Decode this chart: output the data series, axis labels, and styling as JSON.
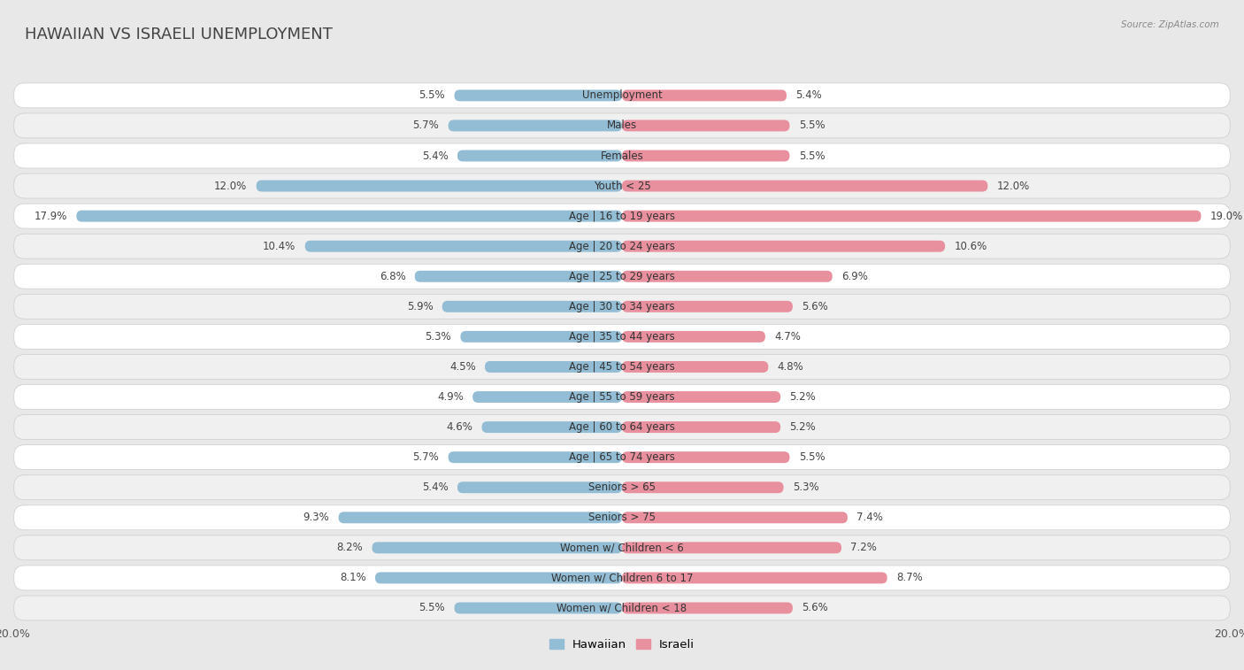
{
  "title": "HAWAIIAN VS ISRAELI UNEMPLOYMENT",
  "source": "Source: ZipAtlas.com",
  "categories": [
    "Unemployment",
    "Males",
    "Females",
    "Youth < 25",
    "Age | 16 to 19 years",
    "Age | 20 to 24 years",
    "Age | 25 to 29 years",
    "Age | 30 to 34 years",
    "Age | 35 to 44 years",
    "Age | 45 to 54 years",
    "Age | 55 to 59 years",
    "Age | 60 to 64 years",
    "Age | 65 to 74 years",
    "Seniors > 65",
    "Seniors > 75",
    "Women w/ Children < 6",
    "Women w/ Children 6 to 17",
    "Women w/ Children < 18"
  ],
  "hawaiian": [
    5.5,
    5.7,
    5.4,
    12.0,
    17.9,
    10.4,
    6.8,
    5.9,
    5.3,
    4.5,
    4.9,
    4.6,
    5.7,
    5.4,
    9.3,
    8.2,
    8.1,
    5.5
  ],
  "israeli": [
    5.4,
    5.5,
    5.5,
    12.0,
    19.0,
    10.6,
    6.9,
    5.6,
    4.7,
    4.8,
    5.2,
    5.2,
    5.5,
    5.3,
    7.4,
    7.2,
    8.7,
    5.6
  ],
  "hawaiian_color": "#92bdd4",
  "israeli_color": "#e8909e",
  "background_color": "#e8e8e8",
  "row_bg_color": "#f0f0f0",
  "row_highlight_color": "#ffffff",
  "max_val": 20.0,
  "title_fontsize": 13,
  "label_fontsize": 8.5,
  "tick_fontsize": 9,
  "legend_fontsize": 9.5
}
